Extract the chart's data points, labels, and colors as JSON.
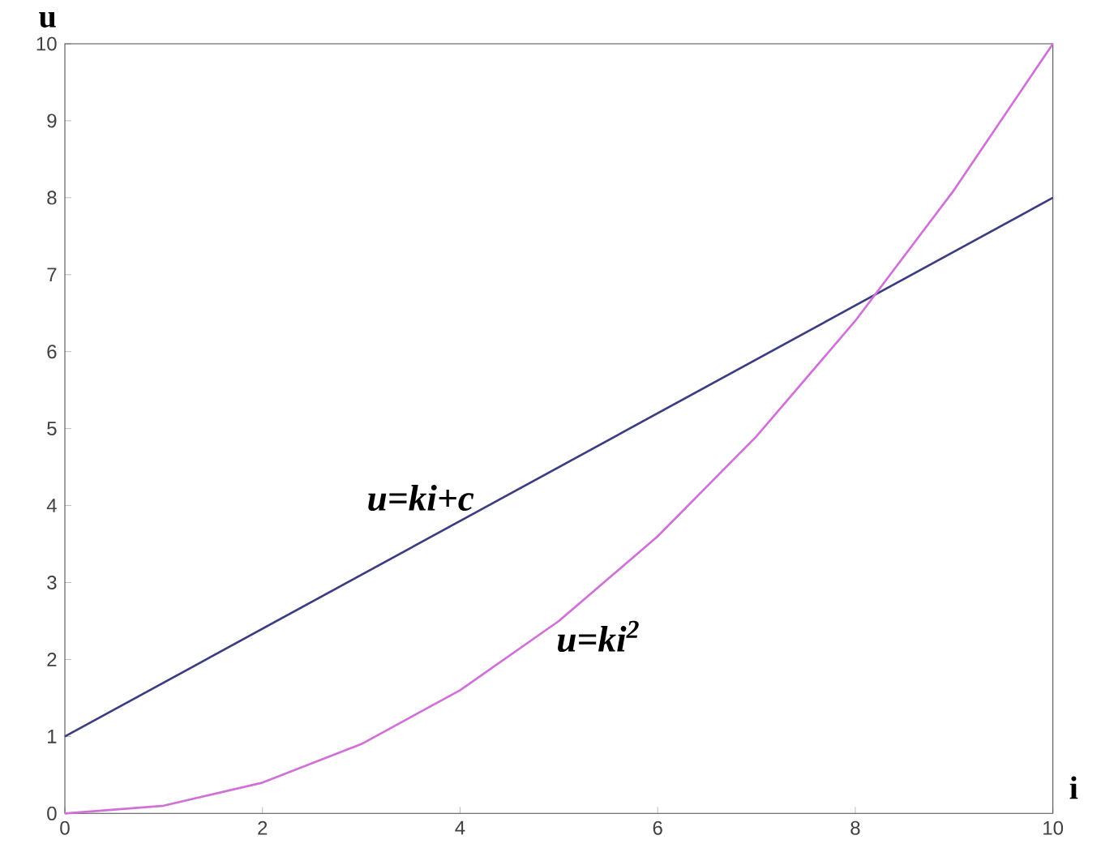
{
  "chart_data": {
    "type": "line",
    "xlabel": "i",
    "ylabel": "u",
    "xlim": [
      0,
      10
    ],
    "ylim": [
      0,
      10
    ],
    "xticks": [
      0,
      2,
      4,
      6,
      8,
      10
    ],
    "yticks": [
      0,
      1,
      2,
      3,
      4,
      5,
      6,
      7,
      8,
      9,
      10
    ],
    "series": [
      {
        "color": "#3c3c80",
        "x": [
          0,
          10
        ],
        "values": [
          1,
          8
        ]
      },
      {
        "color": "#d070d8",
        "x": [
          0,
          1,
          2,
          3,
          4,
          5,
          6,
          7,
          8,
          9,
          10
        ],
        "values": [
          0,
          0.1,
          0.4,
          0.9,
          1.6,
          2.5,
          3.6,
          4.9,
          6.4,
          8.1,
          10
        ]
      }
    ],
    "annotations": [
      "u=ki+c",
      "u=ki$^{2}$"
    ]
  }
}
